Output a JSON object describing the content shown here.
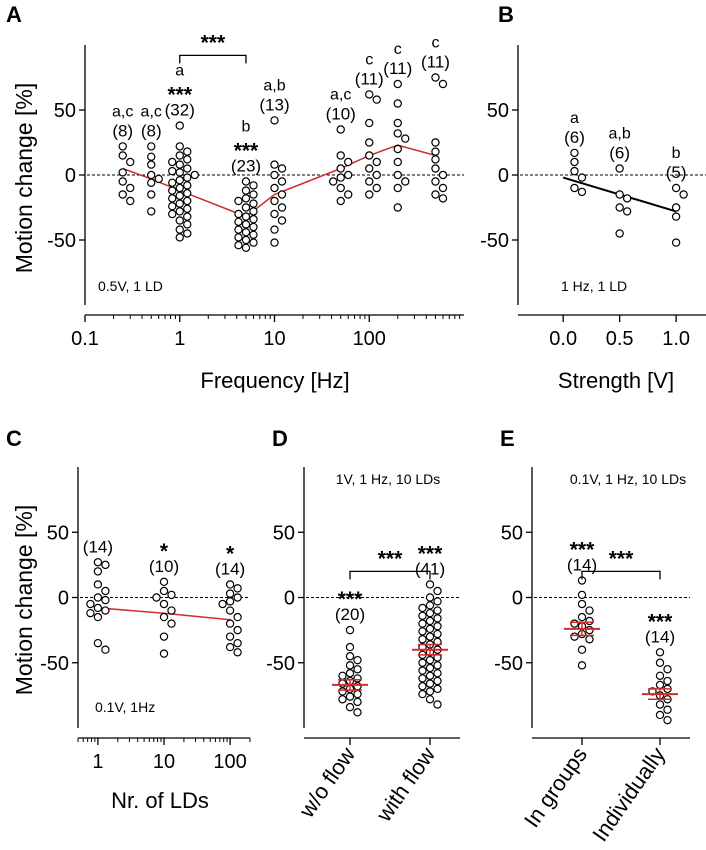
{
  "figure_title": "",
  "colors": {
    "axis": "#000000",
    "trend": "#d22b2b",
    "black_trend": "#000000",
    "points": "#000000"
  },
  "chart_data": [
    {
      "id": "A",
      "panel_label": "A",
      "type": "scatter",
      "xscale": "log",
      "xlabel": "Frequency  [Hz]",
      "ylabel": "Motion change [%]",
      "xlim": [
        0.1,
        1000
      ],
      "ylim": [
        -100,
        100
      ],
      "xticks": [
        0.1,
        1,
        10,
        100
      ],
      "xticklabels": [
        "0.1",
        "1",
        "10",
        "100"
      ],
      "yticks": [
        50,
        0,
        -50
      ],
      "yticklabels": [
        "50",
        "0",
        "-50"
      ],
      "condition": "0.5V, 1 LD",
      "zero_line": true,
      "groups": [
        {
          "x": 0.25,
          "n": "(8)",
          "letters": "a,c",
          "stars": "",
          "values": [
            22,
            15,
            10,
            2,
            -5,
            -10,
            -15,
            -20
          ]
        },
        {
          "x": 0.5,
          "n": "(8)",
          "letters": "a,c",
          "stars": "",
          "values": [
            22,
            14,
            8,
            0,
            -3,
            -6,
            -15,
            -28
          ]
        },
        {
          "x": 1,
          "n": "(32)",
          "letters": "a",
          "stars": "***",
          "values": [
            38,
            22,
            18,
            15,
            12,
            10,
            8,
            5,
            3,
            2,
            0,
            -2,
            -4,
            -6,
            -8,
            -10,
            -12,
            -14,
            -16,
            -18,
            -20,
            -22,
            -24,
            -26,
            -28,
            -30,
            -32,
            -35,
            -38,
            -42,
            -45,
            -48
          ]
        },
        {
          "x": 5,
          "n": "(23)",
          "letters": "b",
          "stars": "***",
          "values": [
            -5,
            -8,
            -12,
            -15,
            -18,
            -20,
            -22,
            -25,
            -28,
            -30,
            -32,
            -34,
            -36,
            -38,
            -40,
            -42,
            -44,
            -46,
            -48,
            -50,
            -52,
            -54,
            -56
          ]
        },
        {
          "x": 10,
          "n": "(13)",
          "letters": "a,b",
          "stars": "",
          "values": [
            42,
            8,
            5,
            0,
            -5,
            -10,
            -15,
            -20,
            -25,
            -30,
            -35,
            -42,
            -52
          ]
        },
        {
          "x": 50,
          "n": "(10)",
          "letters": "a,c",
          "stars": "",
          "values": [
            35,
            15,
            10,
            5,
            0,
            -2,
            -5,
            -10,
            -15,
            -20
          ]
        },
        {
          "x": 100,
          "n": "(11)",
          "letters": "c",
          "stars": "",
          "values": [
            62,
            58,
            40,
            25,
            15,
            10,
            5,
            0,
            -5,
            -10,
            -15
          ]
        },
        {
          "x": 200,
          "n": "(11)",
          "letters": "c",
          "stars": "",
          "values": [
            70,
            55,
            40,
            32,
            28,
            20,
            10,
            0,
            -5,
            -10,
            -25
          ]
        },
        {
          "x": 500,
          "n": "(11)",
          "letters": "c",
          "stars": "",
          "values": [
            75,
            70,
            25,
            18,
            12,
            5,
            0,
            -5,
            -10,
            -15,
            -18
          ]
        }
      ],
      "trend": {
        "color": "red",
        "x": [
          0.25,
          0.5,
          1,
          5,
          10,
          50,
          100,
          200,
          500
        ],
        "y": [
          5,
          -3,
          -12,
          -32,
          -15,
          5,
          15,
          23,
          15
        ]
      },
      "bracket": {
        "x1": 1,
        "x2": 5,
        "y": 92,
        "stars": "***"
      }
    },
    {
      "id": "B",
      "panel_label": "B",
      "type": "scatter",
      "xscale": "linear",
      "xlabel": "Strength [V]",
      "ylabel": "",
      "xlim": [
        -0.4,
        1.3
      ],
      "ylim": [
        -100,
        100
      ],
      "xticks": [
        0,
        0.5,
        1.0
      ],
      "xticklabels": [
        "0.0",
        "0.5",
        "1.0"
      ],
      "yticks": [
        50,
        0,
        -50
      ],
      "yticklabels": [
        "50",
        "0",
        "-50"
      ],
      "condition": "1 Hz, 1 LD",
      "zero_line": true,
      "groups": [
        {
          "x": 0.1,
          "n": "(6)",
          "letters": "a",
          "stars": "",
          "values": [
            17,
            10,
            3,
            -2,
            -10,
            -13
          ]
        },
        {
          "x": 0.5,
          "n": "(6)",
          "letters": "a,b",
          "stars": "",
          "values": [
            5,
            -15,
            -18,
            -25,
            -28,
            -45
          ]
        },
        {
          "x": 1.0,
          "n": "(5)",
          "letters": "b",
          "stars": "",
          "values": [
            -10,
            -15,
            -25,
            -32,
            -52
          ]
        }
      ],
      "trend": {
        "color": "black",
        "x": [
          0.0,
          1.0
        ],
        "y": [
          -2,
          -28
        ]
      }
    },
    {
      "id": "C",
      "panel_label": "C",
      "type": "scatter",
      "xscale": "log",
      "xlabel": "Nr. of LDs",
      "ylabel": "Motion change [%]",
      "xlim": [
        0.5,
        200
      ],
      "ylim": [
        -100,
        100
      ],
      "xticks": [
        1,
        10,
        100
      ],
      "xticklabels": [
        "1",
        "10",
        "100"
      ],
      "yticks": [
        50,
        0,
        -50
      ],
      "yticklabels": [
        "50",
        "0",
        "-50"
      ],
      "condition": "0.1V,  1Hz",
      "zero_line": true,
      "groups": [
        {
          "x": 1,
          "n": "(14)",
          "letters": "",
          "stars": "",
          "values": [
            27,
            25,
            20,
            10,
            5,
            0,
            -2,
            -5,
            -8,
            -10,
            -12,
            -15,
            -35,
            -40
          ]
        },
        {
          "x": 10,
          "n": "(10)",
          "letters": "",
          "stars": "*",
          "values": [
            12,
            5,
            2,
            0,
            -5,
            -10,
            -15,
            -20,
            -30,
            -43
          ]
        },
        {
          "x": 100,
          "n": "(14)",
          "letters": "",
          "stars": "*",
          "values": [
            10,
            7,
            3,
            0,
            -3,
            -5,
            -10,
            -15,
            -20,
            -25,
            -30,
            -35,
            -38,
            -42
          ]
        }
      ],
      "trend": {
        "color": "red",
        "x": [
          1,
          10,
          100
        ],
        "y": [
          -8,
          -12,
          -17
        ]
      }
    },
    {
      "id": "D",
      "panel_label": "D",
      "type": "scatter",
      "xscale": "category",
      "xlabel": "",
      "ylabel": "",
      "categories": [
        "w/o flow",
        "with flow"
      ],
      "ylim": [
        -100,
        100
      ],
      "yticks": [
        50,
        0,
        -50
      ],
      "yticklabels": [
        "50",
        "0",
        "-50"
      ],
      "condition": "1V, 1 Hz, 10 LDs",
      "zero_line": true,
      "groups": [
        {
          "n": "(20)",
          "stars": "***",
          "mean": -67,
          "sem": 4,
          "values": [
            -25,
            -38,
            -45,
            -48,
            -52,
            -55,
            -58,
            -60,
            -62,
            -64,
            -66,
            -68,
            -70,
            -72,
            -74,
            -76,
            -78,
            -80,
            -84,
            -88
          ]
        },
        {
          "n": "(41)",
          "stars": "***",
          "mean": -40,
          "sem": 4,
          "values": [
            10,
            5,
            0,
            -3,
            -6,
            -8,
            -10,
            -12,
            -14,
            -16,
            -18,
            -20,
            -22,
            -24,
            -26,
            -28,
            -30,
            -32,
            -34,
            -36,
            -38,
            -40,
            -42,
            -44,
            -46,
            -48,
            -50,
            -52,
            -54,
            -56,
            -58,
            -60,
            -62,
            -64,
            -66,
            -68,
            -70,
            -72,
            -74,
            -78,
            -82
          ]
        }
      ],
      "bracket": {
        "i1": 0,
        "i2": 1,
        "y": 20,
        "stars": "***"
      }
    },
    {
      "id": "E",
      "panel_label": "E",
      "type": "scatter",
      "xscale": "category",
      "xlabel": "",
      "ylabel": "",
      "categories": [
        "In groups",
        "Individually"
      ],
      "ylim": [
        -100,
        100
      ],
      "yticks": [
        50,
        0,
        -50
      ],
      "yticklabels": [
        "50",
        "0",
        "-50"
      ],
      "condition": "0.1V, 1 Hz, 10 LDs",
      "zero_line": true,
      "groups": [
        {
          "n": "(14)",
          "stars": "***",
          "mean": -24,
          "sem": 5,
          "values": [
            13,
            2,
            -5,
            -10,
            -15,
            -18,
            -20,
            -22,
            -25,
            -28,
            -30,
            -32,
            -40,
            -52
          ]
        },
        {
          "n": "(14)",
          "stars": "***",
          "mean": -74,
          "sem": 4,
          "values": [
            -42,
            -50,
            -55,
            -60,
            -64,
            -67,
            -70,
            -72,
            -75,
            -78,
            -82,
            -86,
            -90,
            -94
          ]
        }
      ],
      "bracket": {
        "i1": 0,
        "i2": 1,
        "y": 20,
        "stars": "***"
      }
    }
  ]
}
